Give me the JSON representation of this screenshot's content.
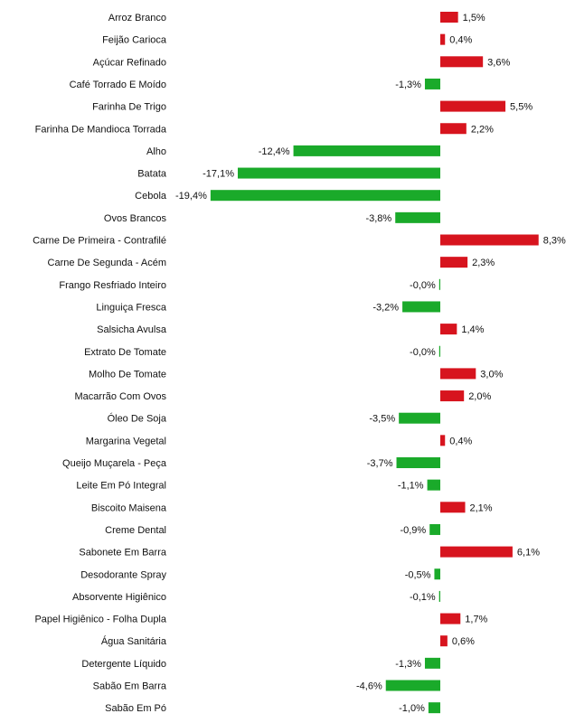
{
  "chart_data": {
    "type": "bar",
    "orientation": "horizontal",
    "title": "",
    "xlabel": "",
    "ylabel": "",
    "unit": "%",
    "xlim": [
      -19.4,
      8.3
    ],
    "grid": false,
    "colors": {
      "positive": "#d7141e",
      "negative": "#1aaa2a"
    },
    "categories": [
      "Arroz Branco",
      "Feijão Carioca",
      "Açúcar Refinado",
      "Café Torrado E Moído",
      "Farinha De Trigo",
      "Farinha De Mandioca Torrada",
      "Alho",
      "Batata",
      "Cebola",
      "Ovos Brancos",
      "Carne De Primeira - Contrafilé",
      "Carne De Segunda - Acém",
      "Frango Resfriado Inteiro",
      "Linguiça Fresca",
      "Salsicha Avulsa",
      "Extrato De Tomate",
      "Molho De Tomate",
      "Macarrão Com Ovos",
      "Óleo De Soja",
      "Margarina Vegetal",
      "Queijo Muçarela - Peça",
      "Leite Em Pó Integral",
      "Biscoito Maisena",
      "Creme Dental",
      "Sabonete Em Barra",
      "Desodorante Spray",
      "Absorvente Higiênico",
      "Papel Higiênico - Folha Dupla",
      "Água Sanitária",
      "Detergente Líquido",
      "Sabão Em Barra",
      "Sabão Em Pó"
    ],
    "values": [
      1.5,
      0.4,
      3.6,
      -1.3,
      5.5,
      2.2,
      -12.4,
      -17.1,
      -19.4,
      -3.8,
      8.3,
      2.3,
      -0.0,
      -3.2,
      1.4,
      -0.0,
      3.0,
      2.0,
      -3.5,
      0.4,
      -3.7,
      -1.1,
      2.1,
      -0.9,
      6.1,
      -0.5,
      -0.1,
      1.7,
      0.6,
      -1.3,
      -4.6,
      -1.0
    ],
    "labels": [
      "1,5%",
      "0,4%",
      "3,6%",
      "-1,3%",
      "5,5%",
      "2,2%",
      "-12,4%",
      "-17,1%",
      "-19,4%",
      "-3,8%",
      "8,3%",
      "2,3%",
      "-0,0%",
      "-3,2%",
      "1,4%",
      "-0,0%",
      "3,0%",
      "2,0%",
      "-3,5%",
      "0,4%",
      "-3,7%",
      "-1,1%",
      "2,1%",
      "-0,9%",
      "6,1%",
      "-0,5%",
      "-0,1%",
      "1,7%",
      "0,6%",
      "-1,3%",
      "-4,6%",
      "-1,0%"
    ]
  }
}
